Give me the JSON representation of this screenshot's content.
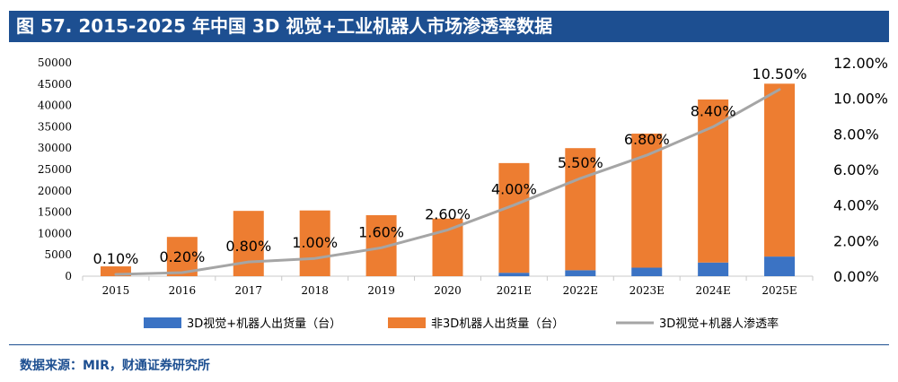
{
  "title": "图 57. 2015-2025 年中国 3D 视觉+工业机器人市场渗透率数据",
  "source": "数据来源：MIR，财通证券研究所",
  "colors": {
    "title_bg": "#1d4f91",
    "series_3d": "#3b73c4",
    "series_non3d": "#ed7d31",
    "line": "#a5a5a5"
  },
  "chart_data": {
    "type": "bar",
    "stacked": true,
    "categories": [
      "2015",
      "2016",
      "2017",
      "2018",
      "2019",
      "2020",
      "2021E",
      "2022E",
      "2023E",
      "2024E",
      "2025E"
    ],
    "series": [
      {
        "name": "3D视觉+机器人出货量（台）",
        "axis": "left",
        "values": [
          0,
          0,
          0,
          0,
          0,
          0,
          800,
          1400,
          2000,
          3200,
          4600
        ]
      },
      {
        "name": "非3D机器人出货量（台）",
        "axis": "left",
        "values": [
          2300,
          9200,
          15300,
          15400,
          14300,
          13500,
          25700,
          28600,
          31400,
          38200,
          40500
        ]
      },
      {
        "name": "3D视觉+机器人渗透率",
        "type": "line",
        "axis": "right",
        "values": [
          0.1,
          0.2,
          0.8,
          1.0,
          1.6,
          2.6,
          4.0,
          5.5,
          6.8,
          8.4,
          10.5
        ],
        "labels": [
          "0.10%",
          "0.20%",
          "0.80%",
          "1.00%",
          "1.60%",
          "2.60%",
          "4.00%",
          "5.50%",
          "6.80%",
          "8.40%",
          "10.50%"
        ]
      }
    ],
    "y_left": {
      "min": 0,
      "max": 50000,
      "ticks": [
        "0",
        "5000",
        "10000",
        "15000",
        "20000",
        "25000",
        "30000",
        "35000",
        "40000",
        "45000",
        "50000"
      ]
    },
    "y_right": {
      "min": 0,
      "max": 12,
      "ticks": [
        "0.00%",
        "2.00%",
        "4.00%",
        "6.00%",
        "8.00%",
        "10.00%",
        "12.00%"
      ]
    },
    "grid": false,
    "legend": "bottom"
  }
}
